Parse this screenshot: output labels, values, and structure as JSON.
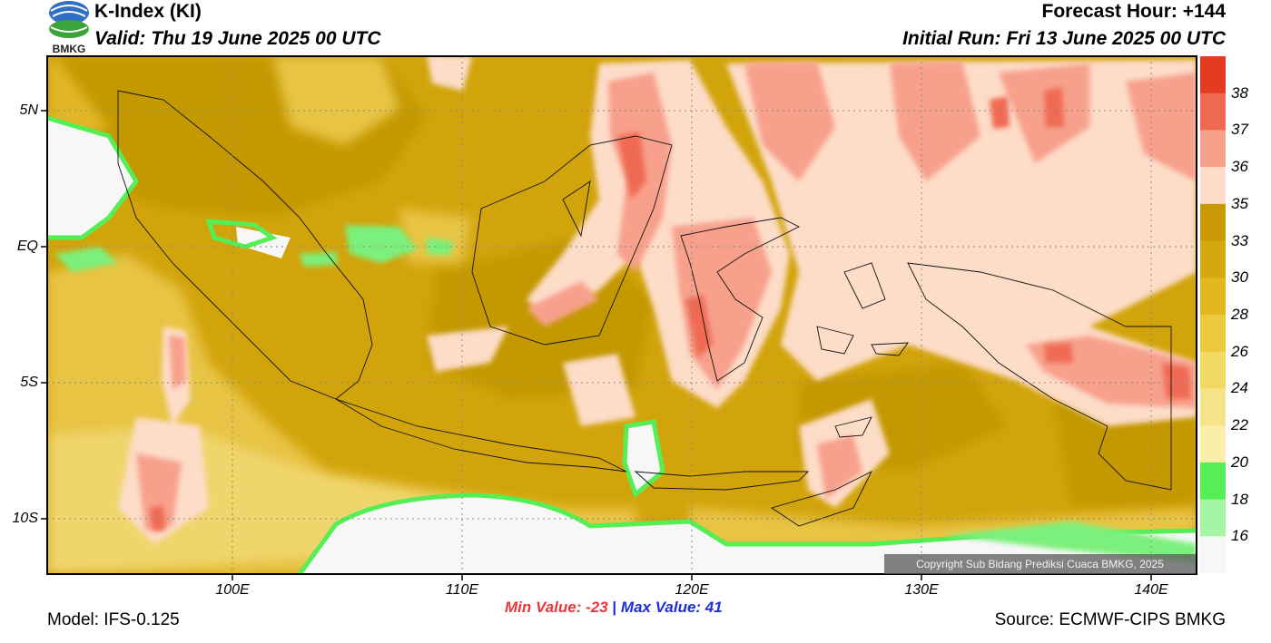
{
  "header": {
    "title": "K-Index (KI)",
    "valid": "Valid: Thu 19 June 2025 00 UTC",
    "forecast_hour": "Forecast Hour: +144",
    "initial_run": "Initial Run: Fri 13 June 2025 00 UTC",
    "logo_text": "BMKG"
  },
  "axes": {
    "lat_labels": [
      "5N",
      "EQ",
      "5S",
      "10S"
    ],
    "lon_labels": [
      "100E",
      "110E",
      "120E",
      "130E",
      "140E"
    ]
  },
  "colorbar": {
    "labels": [
      "38",
      "37",
      "36",
      "35",
      "33",
      "30",
      "28",
      "26",
      "24",
      "22",
      "20",
      "18",
      "16"
    ],
    "colors": [
      "#e23b22",
      "#f06a52",
      "#f7a08c",
      "#fddcc8",
      "#c99a06",
      "#d6a810",
      "#e2b81e",
      "#ecca3c",
      "#f2d962",
      "#f7e48a",
      "#f9eeaa",
      "#55ee55",
      "#a4f4a4",
      "#f7f7f7"
    ]
  },
  "stats": {
    "min": "Min Value: -23",
    "separator": "|",
    "max": "Max Value:  41"
  },
  "footer": {
    "model": "Model: IFS-0.125",
    "source": "Source: ECMWF-CIPS BMKG",
    "copyright": "Copyright Sub Bidang Prediksi Cuaca BMKG, 2025"
  }
}
